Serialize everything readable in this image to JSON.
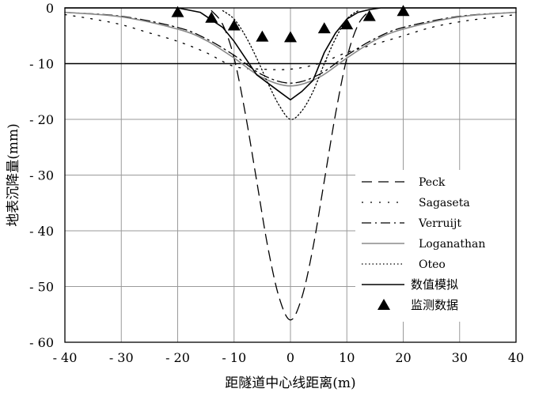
{
  "chart_data": {
    "type": "line",
    "title": "",
    "xlabel": "距隧道中心线距离(m)",
    "ylabel": "地表沉降量(mm)",
    "xlim": [
      -40,
      40
    ],
    "ylim": [
      -60,
      0
    ],
    "xticks": [
      -40,
      -30,
      -20,
      -10,
      0,
      10,
      20,
      30,
      40
    ],
    "xtick_labels": [
      "- 40",
      "- 30",
      "- 20",
      "- 10",
      "0",
      "10",
      "20",
      "30",
      "40"
    ],
    "yticks": [
      0,
      -10,
      -20,
      -30,
      -40,
      -50,
      -60
    ],
    "ytick_labels": [
      "0",
      "- 10",
      "- 20",
      "- 30",
      "- 40",
      "- 50",
      "- 60"
    ],
    "grid": true,
    "reference_line": -10,
    "legend_position": "bottom-right",
    "series": [
      {
        "name": "Peck",
        "style": "dashed",
        "color": "#000000",
        "x": [
          -14,
          -12,
          -10,
          -8,
          -6,
          -4,
          -2,
          0,
          2,
          4,
          6,
          8,
          10,
          12,
          14
        ],
        "y": [
          -0.5,
          -3,
          -9,
          -19,
          -31,
          -43,
          -52,
          -56,
          -52,
          -43,
          -31,
          -19,
          -9,
          -3,
          -0.5
        ]
      },
      {
        "name": "Sagaseta",
        "style": "dotted-sparse",
        "color": "#000000",
        "x": [
          -40,
          -35,
          -30,
          -25,
          -20,
          -15,
          -10,
          -5,
          0,
          5,
          10,
          15,
          20,
          25,
          30,
          35,
          40
        ],
        "y": [
          -1.2,
          -2,
          -3,
          -4.5,
          -6,
          -8,
          -10.5,
          -11,
          -11,
          -10,
          -8,
          -6.5,
          -5,
          -3.5,
          -2.5,
          -1.8,
          -1.2
        ]
      },
      {
        "name": "Verruijt",
        "style": "dashdot",
        "color": "#000000",
        "x": [
          -40,
          -30,
          -20,
          -15,
          -10,
          -5,
          0,
          5,
          10,
          15,
          20,
          30,
          40
        ],
        "y": [
          -0.8,
          -1.5,
          -3.5,
          -5.5,
          -8.5,
          -12,
          -13.5,
          -12,
          -8.5,
          -5.5,
          -3.5,
          -1.5,
          -0.8
        ]
      },
      {
        "name": "Loganathan",
        "style": "solid",
        "color": "#8a8a8a",
        "x": [
          -40,
          -30,
          -20,
          -15,
          -10,
          -5,
          0,
          5,
          10,
          15,
          20,
          30,
          40
        ],
        "y": [
          -0.8,
          -1.6,
          -3.8,
          -5.8,
          -9,
          -12.5,
          -14,
          -12.5,
          -9,
          -5.8,
          -3.8,
          -1.6,
          -0.8
        ]
      },
      {
        "name": "Oteo",
        "style": "dotted",
        "color": "#000000",
        "x": [
          -12,
          -10,
          -8,
          -6,
          -4,
          -2,
          0,
          2,
          4,
          6,
          8,
          10,
          12
        ],
        "y": [
          -0.5,
          -2,
          -5,
          -9,
          -13.5,
          -17.5,
          -20,
          -18.5,
          -15,
          -10,
          -5.5,
          -2,
          -0.5
        ]
      },
      {
        "name": "数值模拟",
        "style": "solid",
        "color": "#000000",
        "x": [
          -40,
          -20,
          -16,
          -12,
          -10,
          -8,
          -6,
          -4,
          -2,
          0,
          2,
          4,
          6,
          8,
          10,
          12,
          14,
          16,
          20,
          40
        ],
        "y": [
          0,
          0,
          -0.8,
          -3.5,
          -6,
          -9,
          -12,
          -13.5,
          -15,
          -16.5,
          -15,
          -13,
          -8,
          -4.5,
          -2,
          -0.8,
          -0.3,
          0,
          0,
          0
        ]
      }
    ],
    "monitoring_points": {
      "name": "监测数据",
      "x": [
        -20,
        -14,
        -10,
        -5,
        0,
        6,
        10,
        14,
        20
      ],
      "y": [
        -0.8,
        -1.8,
        -3.2,
        -5.2,
        -5.3,
        -3.7,
        -3.0,
        -1.5,
        -0.6
      ]
    }
  }
}
